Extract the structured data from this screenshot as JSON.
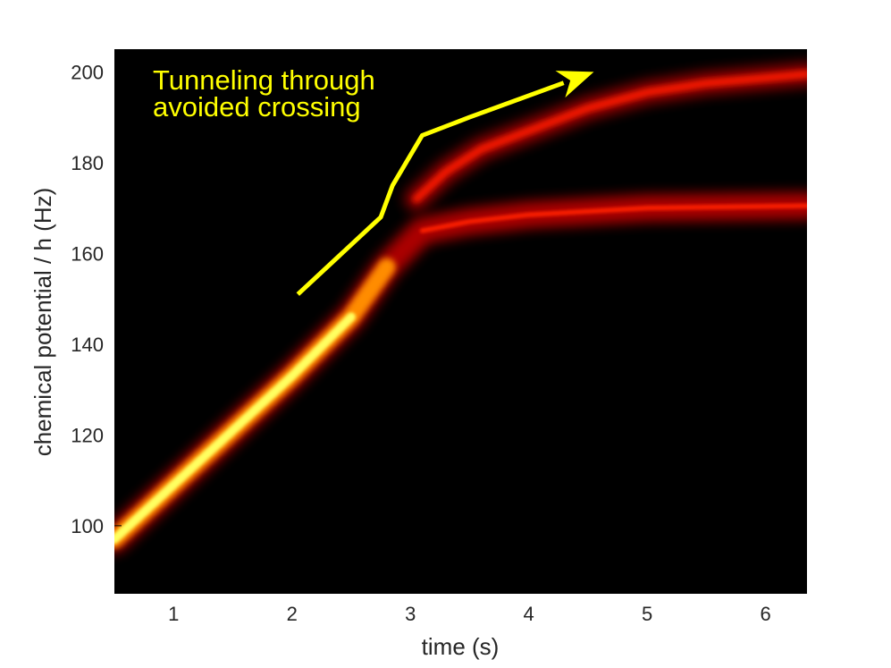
{
  "chart_data": {
    "type": "heatmap",
    "xlabel": "time (s)",
    "ylabel": "chemical potential / h (Hz)",
    "xlim": [
      0.5,
      6.35
    ],
    "ylim": [
      85,
      205
    ],
    "xticks": [
      1,
      2,
      3,
      4,
      5,
      6
    ],
    "yticks": [
      100,
      120,
      140,
      160,
      180,
      200
    ],
    "grid": false,
    "colormap": "hot",
    "background_color": "#000000",
    "annotation": {
      "lines": [
        "Tunneling through",
        "avoided crossing"
      ],
      "color": "#ffff00",
      "arrow_path": [
        [
          2.05,
          151
        ],
        [
          2.75,
          168
        ],
        [
          2.85,
          175
        ],
        [
          3.1,
          186
        ],
        [
          3.5,
          190
        ],
        [
          4.55,
          200
        ]
      ]
    },
    "bands": [
      {
        "name": "",
        "points": [
          [
            0.5,
            97
          ],
          [
            1.0,
            109
          ],
          [
            1.5,
            121
          ],
          [
            2.0,
            133
          ],
          [
            2.5,
            146
          ],
          [
            2.8,
            157
          ],
          [
            3.1,
            165
          ],
          [
            3.5,
            167
          ],
          [
            4.0,
            168.5
          ],
          [
            5.0,
            170
          ],
          [
            6.35,
            170.5
          ]
        ]
      },
      {
        "name": "",
        "points": [
          [
            3.05,
            172
          ],
          [
            3.3,
            178
          ],
          [
            3.6,
            183
          ],
          [
            4.0,
            187
          ],
          [
            4.5,
            192
          ],
          [
            5.0,
            195.5
          ],
          [
            5.5,
            197.5
          ],
          [
            6.35,
            199.5
          ]
        ]
      }
    ]
  }
}
